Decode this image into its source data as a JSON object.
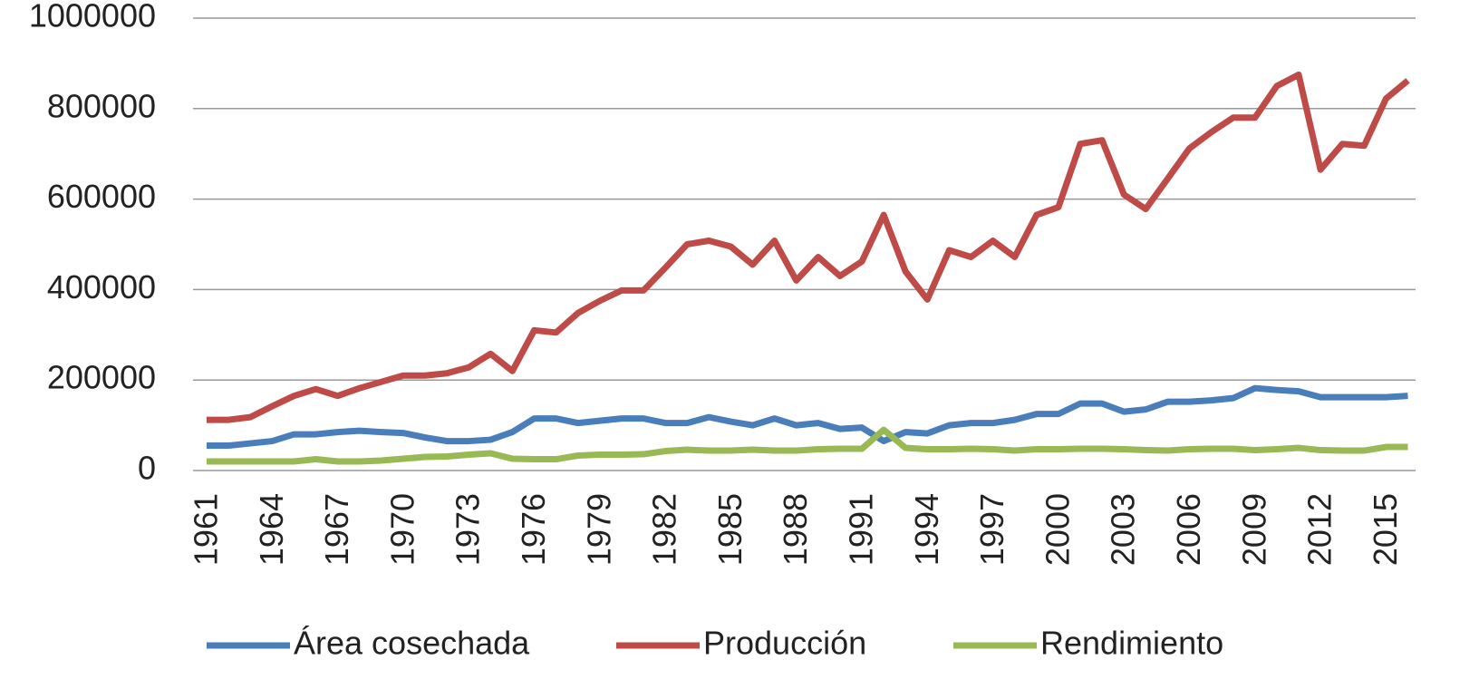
{
  "chart_data": {
    "type": "line",
    "categories": [
      "1961",
      null,
      null,
      "1964",
      null,
      null,
      "1967",
      null,
      null,
      "1970",
      null,
      null,
      "1973",
      null,
      null,
      "1976",
      null,
      null,
      "1979",
      null,
      null,
      "1982",
      null,
      null,
      "1985",
      null,
      null,
      "1988",
      null,
      null,
      "1991",
      null,
      null,
      "1994",
      null,
      null,
      "1997",
      null,
      null,
      "2000",
      null,
      null,
      "2003",
      null,
      null,
      "2006",
      null,
      null,
      "2009",
      null,
      null,
      "2012",
      null,
      null,
      "2015",
      null
    ],
    "series": [
      {
        "name": "Área cosechada",
        "color": "#4a7ebb",
        "values": [
          55000,
          55000,
          60000,
          65000,
          80000,
          80000,
          85000,
          88000,
          85000,
          83000,
          73000,
          65000,
          65000,
          68000,
          85000,
          115000,
          115000,
          105000,
          110000,
          115000,
          115000,
          105000,
          105000,
          118000,
          108000,
          100000,
          115000,
          100000,
          105000,
          92000,
          95000,
          65000,
          85000,
          82000,
          100000,
          105000,
          105000,
          112000,
          125000,
          125000,
          148000,
          148000,
          130000,
          135000,
          152000,
          152000,
          155000,
          160000,
          182000,
          178000,
          175000,
          162000,
          162000,
          162000,
          162000,
          165000
        ]
      },
      {
        "name": "Producción",
        "color": "#be4b48",
        "values": [
          112000,
          112000,
          118000,
          142000,
          165000,
          180000,
          165000,
          182000,
          196000,
          210000,
          210000,
          215000,
          228000,
          258000,
          220000,
          310000,
          305000,
          348000,
          375000,
          398000,
          398000,
          448000,
          500000,
          508000,
          495000,
          455000,
          508000,
          420000,
          472000,
          430000,
          462000,
          565000,
          440000,
          378000,
          487000,
          472000,
          508000,
          472000,
          565000,
          582000,
          722000,
          730000,
          610000,
          578000,
          645000,
          712000,
          748000,
          780000,
          780000,
          850000,
          875000,
          665000,
          722000,
          718000,
          822000,
          862000
        ]
      },
      {
        "name": "Rendimiento",
        "color": "#98b954",
        "values": [
          20000,
          20000,
          20000,
          20000,
          20000,
          25000,
          20000,
          20000,
          22000,
          26000,
          30000,
          31000,
          35000,
          38000,
          26000,
          25000,
          25000,
          33000,
          35000,
          35000,
          36000,
          43000,
          46000,
          44000,
          44000,
          46000,
          44000,
          44000,
          47000,
          48000,
          48000,
          90000,
          50000,
          47000,
          47000,
          48000,
          47000,
          44000,
          47000,
          47000,
          48000,
          48000,
          47000,
          45000,
          44000,
          47000,
          48000,
          48000,
          45000,
          47000,
          50000,
          45000,
          44000,
          44000,
          52000,
          52000
        ]
      }
    ],
    "ylim": [
      0,
      1000000
    ],
    "yticks": [
      0,
      200000,
      400000,
      600000,
      800000,
      1000000
    ],
    "grid": true
  }
}
